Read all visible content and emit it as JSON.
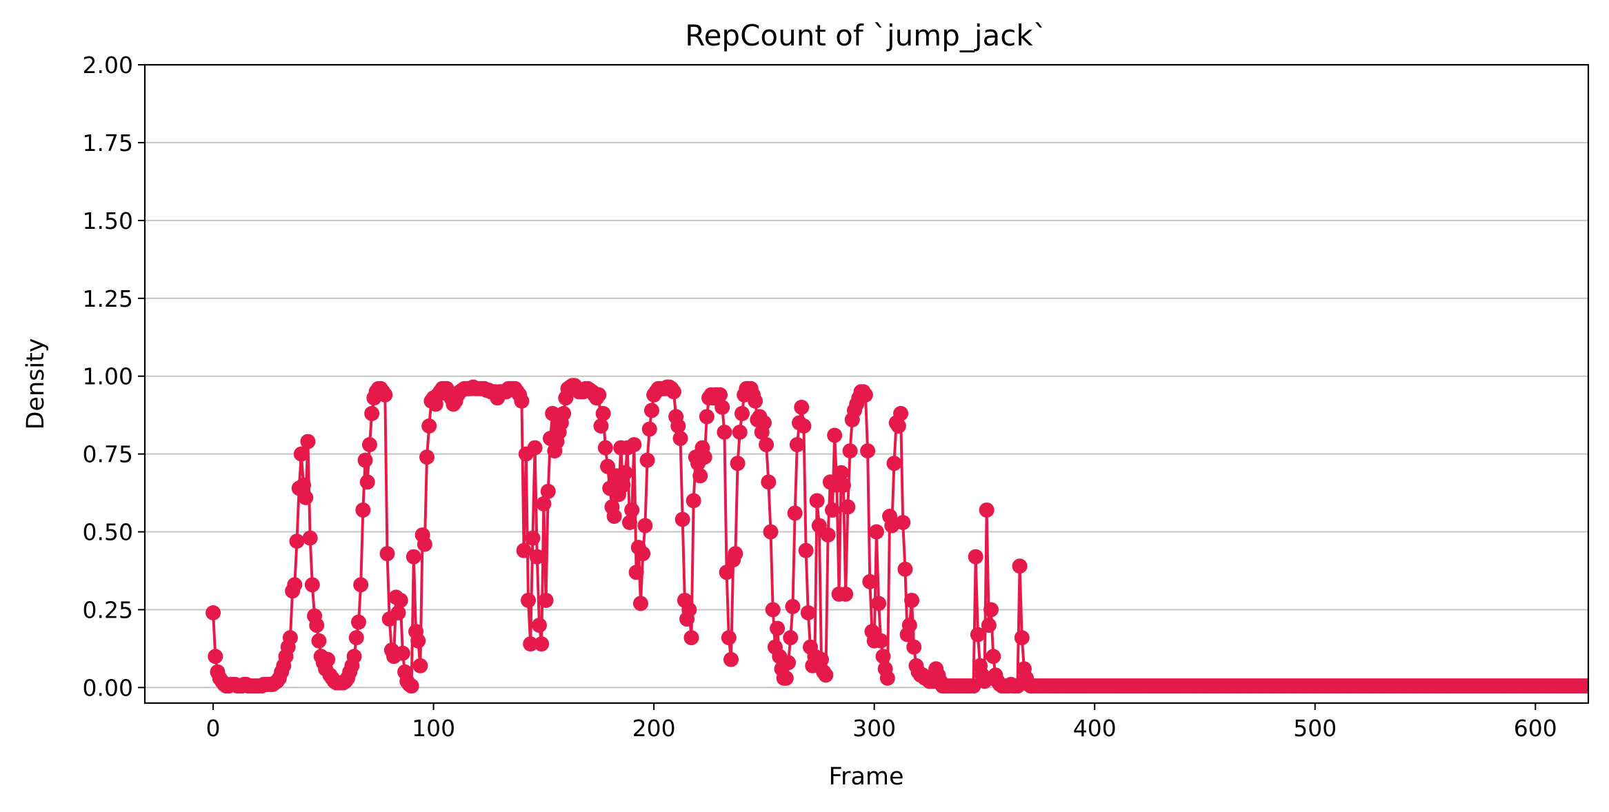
{
  "chart_data": {
    "type": "line",
    "title": "RepCount of `jump_jack`",
    "xlabel": "Frame",
    "ylabel": "Density",
    "xlim": [
      -31,
      624
    ],
    "ylim": [
      -0.05,
      2.0
    ],
    "x_ticks": [
      0,
      100,
      200,
      300,
      400,
      500,
      600
    ],
    "x_tick_labels": [
      "0",
      "100",
      "200",
      "300",
      "400",
      "500",
      "600"
    ],
    "y_ticks": [
      0.0,
      0.25,
      0.5,
      0.75,
      1.0,
      1.25,
      1.5,
      1.75,
      2.0
    ],
    "y_tick_labels": [
      "0.00",
      "0.25",
      "0.50",
      "0.75",
      "1.00",
      "1.25",
      "1.50",
      "1.75",
      "2.00"
    ],
    "grid": "horizontal",
    "series_color": "#e6194b",
    "series": [
      {
        "values": [
          0.24,
          0.1,
          0.05,
          0.03,
          0.02,
          0.01,
          0.005,
          0.005,
          0.01,
          0.01,
          0.01,
          0.005,
          0.005,
          0.005,
          0.01,
          0.01,
          0.005,
          0.005,
          0.005,
          0.005,
          0.005,
          0.005,
          0.005,
          0.01,
          0.01,
          0.01,
          0.01,
          0.01,
          0.015,
          0.02,
          0.03,
          0.05,
          0.07,
          0.1,
          0.13,
          0.16,
          0.31,
          0.33,
          0.47,
          0.64,
          0.75,
          0.65,
          0.61,
          0.79,
          0.48,
          0.33,
          0.23,
          0.2,
          0.15,
          0.1,
          0.08,
          0.06,
          0.09,
          0.04,
          0.03,
          0.02,
          0.015,
          0.015,
          0.015,
          0.015,
          0.02,
          0.03,
          0.05,
          0.07,
          0.1,
          0.16,
          0.21,
          0.33,
          0.57,
          0.73,
          0.66,
          0.78,
          0.88,
          0.93,
          0.95,
          0.96,
          0.96,
          0.95,
          0.94,
          0.43,
          0.22,
          0.12,
          0.1,
          0.29,
          0.24,
          0.28,
          0.11,
          0.05,
          0.02,
          0.01,
          0.005,
          0.42,
          0.18,
          0.15,
          0.07,
          0.49,
          0.46,
          0.74,
          0.84,
          0.92,
          0.93,
          0.91,
          0.94,
          0.95,
          0.96,
          0.96,
          0.96,
          0.94,
          0.93,
          0.91,
          0.92,
          0.94,
          0.95,
          0.955,
          0.96,
          0.96,
          0.96,
          0.96,
          0.965,
          0.96,
          0.96,
          0.96,
          0.96,
          0.96,
          0.955,
          0.955,
          0.95,
          0.95,
          0.95,
          0.93,
          0.95,
          0.95,
          0.95,
          0.95,
          0.96,
          0.96,
          0.96,
          0.96,
          0.95,
          0.94,
          0.92,
          0.44,
          0.75,
          0.28,
          0.14,
          0.48,
          0.77,
          0.42,
          0.2,
          0.14,
          0.59,
          0.28,
          0.63,
          0.8,
          0.88,
          0.76,
          0.79,
          0.82,
          0.85,
          0.88,
          0.93,
          0.96,
          0.965,
          0.97,
          0.97,
          0.96,
          0.95,
          0.95,
          0.95,
          0.96,
          0.96,
          0.955,
          0.95,
          0.94,
          0.93,
          0.94,
          0.84,
          0.88,
          0.77,
          0.71,
          0.64,
          0.58,
          0.55,
          0.68,
          0.62,
          0.77,
          0.65,
          0.69,
          0.77,
          0.53,
          0.57,
          0.78,
          0.37,
          0.45,
          0.27,
          0.43,
          0.52,
          0.73,
          0.83,
          0.89,
          0.94,
          0.95,
          0.96,
          0.96,
          0.96,
          0.96,
          0.965,
          0.965,
          0.96,
          0.95,
          0.87,
          0.84,
          0.8,
          0.54,
          0.28,
          0.22,
          0.25,
          0.16,
          0.6,
          0.74,
          0.72,
          0.68,
          0.77,
          0.74,
          0.87,
          0.93,
          0.94,
          0.93,
          0.94,
          0.94,
          0.94,
          0.9,
          0.82,
          0.37,
          0.16,
          0.09,
          0.41,
          0.43,
          0.72,
          0.82,
          0.88,
          0.94,
          0.96,
          0.96,
          0.96,
          0.94,
          0.92,
          0.86,
          0.87,
          0.82,
          0.85,
          0.78,
          0.66,
          0.5,
          0.25,
          0.13,
          0.19,
          0.1,
          0.06,
          0.03,
          0.03,
          0.08,
          0.16,
          0.26,
          0.56,
          0.78,
          0.85,
          0.9,
          0.84,
          0.44,
          0.24,
          0.13,
          0.07,
          0.1,
          0.6,
          0.52,
          0.09,
          0.05,
          0.04,
          0.49,
          0.66,
          0.57,
          0.81,
          0.65,
          0.3,
          0.69,
          0.65,
          0.3,
          0.58,
          0.76,
          0.86,
          0.89,
          0.91,
          0.93,
          0.95,
          0.95,
          0.94,
          0.76,
          0.34,
          0.18,
          0.15,
          0.5,
          0.27,
          0.15,
          0.1,
          0.06,
          0.03,
          0.55,
          0.52,
          0.72,
          0.85,
          0.84,
          0.88,
          0.53,
          0.38,
          0.17,
          0.2,
          0.28,
          0.13,
          0.07,
          0.05,
          0.04,
          0.04,
          0.03,
          0.03,
          0.02,
          0.02,
          0.02,
          0.06,
          0.04,
          0.02,
          0.005,
          0.005,
          0.005,
          0.005,
          0.005,
          0.005,
          0.005,
          0.005,
          0.005,
          0.005,
          0.005,
          0.005,
          0.005,
          0.005,
          0.005,
          0.42,
          0.17,
          0.07,
          0.04,
          0.02,
          0.57,
          0.2,
          0.25,
          0.1,
          0.04,
          0.02,
          0.01,
          0.005,
          0.005,
          0.005,
          0.005,
          0.01,
          0.005,
          0.005,
          0.005,
          0.39,
          0.16,
          0.06,
          0.03,
          0.01,
          0.005,
          0.005,
          0.005,
          0.005,
          0.005,
          0.005,
          0.005,
          0.005,
          0.005,
          0.005,
          0.005,
          0.005,
          0.005,
          0.005,
          0.005,
          0.005,
          0.005,
          0.005,
          0.005,
          0.005,
          0.005,
          0.005,
          0.005,
          0.005,
          0.005,
          0.005,
          0.005,
          0.005,
          0.005,
          0.005,
          0.005,
          0.005,
          0.005,
          0.005,
          0.005,
          0.005,
          0.005,
          0.005,
          0.005,
          0.005,
          0.005,
          0.005,
          0.005,
          0.005,
          0.005,
          0.005,
          0.005,
          0.005,
          0.005,
          0.005,
          0.005,
          0.005,
          0.005,
          0.005,
          0.005,
          0.005,
          0.005,
          0.005,
          0.005,
          0.005,
          0.005,
          0.005,
          0.005,
          0.005,
          0.005,
          0.005,
          0.005,
          0.005,
          0.005,
          0.005,
          0.005,
          0.005,
          0.005,
          0.005,
          0.005,
          0.005,
          0.005,
          0.005,
          0.005,
          0.005,
          0.005,
          0.005,
          0.005,
          0.005,
          0.005,
          0.005,
          0.005,
          0.005,
          0.005,
          0.005,
          0.005,
          0.005,
          0.005,
          0.005,
          0.005,
          0.005,
          0.005,
          0.005,
          0.005,
          0.005,
          0.005,
          0.005,
          0.005,
          0.005,
          0.005,
          0.005,
          0.005,
          0.005,
          0.005,
          0.005,
          0.005,
          0.005,
          0.005,
          0.005,
          0.005,
          0.005,
          0.005,
          0.005,
          0.005,
          0.005,
          0.005,
          0.005,
          0.005,
          0.005,
          0.005,
          0.005,
          0.005,
          0.005,
          0.005,
          0.005,
          0.005,
          0.005,
          0.005,
          0.005,
          0.005,
          0.005,
          0.005,
          0.005,
          0.005,
          0.005,
          0.005,
          0.005,
          0.005,
          0.005,
          0.005,
          0.005,
          0.005,
          0.005,
          0.005,
          0.005,
          0.005,
          0.005,
          0.005,
          0.005,
          0.005,
          0.005,
          0.005,
          0.005,
          0.005,
          0.005,
          0.005,
          0.005,
          0.005,
          0.005,
          0.005,
          0.005,
          0.005,
          0.005,
          0.005,
          0.005,
          0.005,
          0.005,
          0.005,
          0.005,
          0.005,
          0.005,
          0.005,
          0.005,
          0.005,
          0.005,
          0.005,
          0.005,
          0.005,
          0.005,
          0.005,
          0.005,
          0.005,
          0.005,
          0.005,
          0.005,
          0.005,
          0.005,
          0.005,
          0.005,
          0.005,
          0.005,
          0.005,
          0.005,
          0.005,
          0.005,
          0.005,
          0.005,
          0.005,
          0.005,
          0.005,
          0.005,
          0.005,
          0.005,
          0.005,
          0.005,
          0.005,
          0.005,
          0.005,
          0.005,
          0.005,
          0.005,
          0.005,
          0.005,
          0.005,
          0.005,
          0.005,
          0.005,
          0.005,
          0.005,
          0.005,
          0.005,
          0.005,
          0.005,
          0.005,
          0.005,
          0.005,
          0.005,
          0.005,
          0.005,
          0.005,
          0.005,
          0.005,
          0.005,
          0.005,
          0.005,
          0.005,
          0.005,
          0.005,
          0.005,
          0.005,
          0.005,
          0.005,
          0.005,
          0.005,
          0.005,
          0.005,
          0.005,
          0.005,
          0.005,
          0.005,
          0.005,
          0.005,
          0.005,
          0.005,
          0.005,
          0.005,
          0.005,
          0.005,
          0.005,
          0.005,
          0.005,
          0.005,
          0.005,
          0.005,
          0.005,
          0.005,
          0.005,
          0.005,
          0.005,
          0.005,
          0.005,
          0.005,
          0.005,
          0.005,
          0.005,
          0.005,
          0.005,
          0.005,
          0.005,
          0.005,
          0.005,
          0.005
        ]
      }
    ]
  }
}
